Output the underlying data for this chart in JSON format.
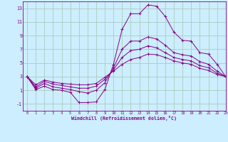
{
  "xlabel": "Windchill (Refroidissement éolien,°C)",
  "bg_color": "#cceeff",
  "grid_color": "#aaccbb",
  "line_color": "#880088",
  "xlim": [
    -0.5,
    23
  ],
  "ylim": [
    -2,
    14
  ],
  "xticks": [
    0,
    1,
    2,
    3,
    4,
    5,
    6,
    7,
    8,
    9,
    10,
    11,
    12,
    13,
    14,
    15,
    16,
    17,
    18,
    19,
    20,
    21,
    22,
    23
  ],
  "yticks": [
    -1,
    1,
    3,
    5,
    7,
    9,
    11,
    13
  ],
  "series": [
    [
      3.0,
      1.1,
      1.6,
      1.1,
      1.0,
      0.7,
      -0.8,
      -0.8,
      -0.7,
      1.1,
      4.8,
      9.9,
      12.2,
      12.2,
      13.5,
      13.3,
      11.8,
      9.5,
      8.3,
      8.2,
      6.5,
      6.3,
      4.8,
      3.0
    ],
    [
      3.0,
      1.3,
      2.0,
      1.5,
      1.3,
      1.1,
      0.8,
      0.6,
      1.0,
      2.1,
      4.3,
      7.0,
      8.2,
      8.2,
      8.8,
      8.5,
      7.6,
      6.5,
      6.2,
      6.0,
      5.2,
      4.8,
      3.8,
      3.0
    ],
    [
      3.0,
      1.5,
      2.3,
      1.9,
      1.7,
      1.5,
      1.3,
      1.3,
      1.6,
      2.6,
      4.0,
      5.8,
      6.8,
      7.0,
      7.5,
      7.2,
      6.5,
      5.8,
      5.5,
      5.3,
      4.6,
      4.3,
      3.5,
      3.0
    ],
    [
      3.0,
      1.8,
      2.5,
      2.2,
      2.0,
      1.9,
      1.8,
      1.8,
      2.0,
      2.9,
      3.8,
      4.8,
      5.5,
      5.8,
      6.3,
      6.2,
      5.8,
      5.3,
      5.0,
      4.8,
      4.2,
      3.9,
      3.3,
      3.0
    ]
  ],
  "marker": "+",
  "marker_size": 2.5,
  "linewidth": 0.7
}
